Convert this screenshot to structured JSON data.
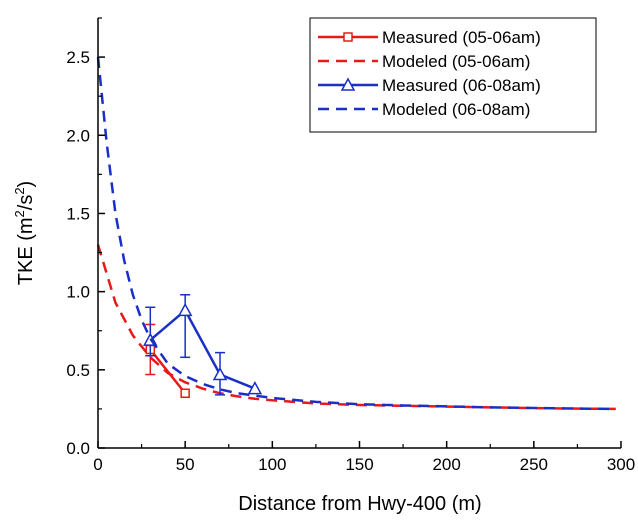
{
  "chart_data": {
    "type": "line",
    "xlabel": "Distance from Hwy-400 (m)",
    "ylabel": "TKE (m",
    "ylabel_sup1": "2",
    "ylabel_mid": "/s",
    "ylabel_sup2": "2",
    "ylabel_end": ")",
    "xlim": [
      0,
      300
    ],
    "ylim": [
      0,
      2.75
    ],
    "xticks": [
      0,
      50,
      100,
      150,
      200,
      250,
      300
    ],
    "yticks": [
      0.0,
      0.5,
      1.0,
      1.5,
      2.0,
      2.5
    ],
    "xtick_labels": [
      "0",
      "50",
      "100",
      "150",
      "200",
      "250",
      "300"
    ],
    "ytick_labels": [
      "0.0",
      "0.5",
      "1.0",
      "1.5",
      "2.0",
      "2.5"
    ],
    "grid": false,
    "legend_position": "top-right",
    "series": [
      {
        "name": "Measured (05-06am)",
        "kind": "measured",
        "color": "#e8191a",
        "marker": "square",
        "x": [
          30,
          50
        ],
        "y": [
          0.63,
          0.35
        ],
        "err_low": [
          0.47,
          null
        ],
        "err_high": [
          0.79,
          null
        ]
      },
      {
        "name": "Modeled (05-06am)",
        "kind": "modeled",
        "color": "#e8191a",
        "x": [
          0,
          10,
          20,
          30,
          40,
          50,
          60,
          70,
          80,
          90,
          100,
          125,
          150,
          175,
          200,
          225,
          250,
          275,
          297
        ],
        "y": [
          1.3,
          0.93,
          0.72,
          0.58,
          0.48,
          0.42,
          0.38,
          0.35,
          0.33,
          0.315,
          0.305,
          0.285,
          0.275,
          0.27,
          0.265,
          0.26,
          0.255,
          0.252,
          0.25
        ]
      },
      {
        "name": "Measured (06-08am)",
        "kind": "measured",
        "color": "#1a2ec8",
        "marker": "triangle",
        "x": [
          30,
          50,
          70,
          90
        ],
        "y": [
          0.69,
          0.88,
          0.47,
          0.38
        ],
        "err_low": [
          0.59,
          0.58,
          0.34,
          null
        ],
        "err_high": [
          0.9,
          0.98,
          0.61,
          null
        ]
      },
      {
        "name": "Modeled (06-08am)",
        "kind": "modeled",
        "color": "#1a2ec8",
        "x": [
          0,
          5,
          10,
          15,
          20,
          25,
          30,
          40,
          50,
          60,
          70,
          80,
          90,
          100,
          125,
          150,
          175,
          200,
          225,
          250,
          275,
          297
        ],
        "y": [
          2.5,
          1.95,
          1.5,
          1.2,
          0.98,
          0.82,
          0.7,
          0.54,
          0.46,
          0.41,
          0.375,
          0.35,
          0.335,
          0.32,
          0.295,
          0.28,
          0.272,
          0.266,
          0.26,
          0.256,
          0.252,
          0.25
        ]
      }
    ]
  }
}
